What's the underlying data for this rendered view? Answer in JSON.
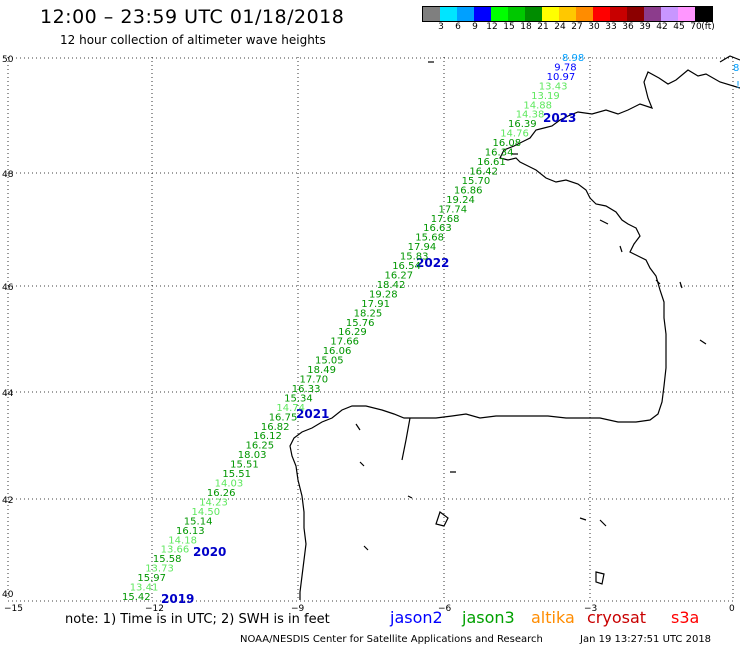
{
  "header": {
    "title": "12:00 – 23:59 UTC 01/18/2018",
    "subtitle": "12 hour collection of altimeter wave heights"
  },
  "legend": {
    "unit": "(ft)",
    "bins": [
      {
        "label": "3",
        "color": "#7f7f7f"
      },
      {
        "label": "6",
        "color": "#00e5ff"
      },
      {
        "label": "9",
        "color": "#00a0ff"
      },
      {
        "label": "12",
        "color": "#0000ff"
      },
      {
        "label": "15",
        "color": "#00ff00"
      },
      {
        "label": "18",
        "color": "#00c800"
      },
      {
        "label": "21",
        "color": "#008c00"
      },
      {
        "label": "24",
        "color": "#ffff00"
      },
      {
        "label": "27",
        "color": "#ffc800"
      },
      {
        "label": "30",
        "color": "#ff8c00"
      },
      {
        "label": "33",
        "color": "#ff0000"
      },
      {
        "label": "36",
        "color": "#c80000"
      },
      {
        "label": "39",
        "color": "#8c0000"
      },
      {
        "label": "42",
        "color": "#8c3c8c"
      },
      {
        "label": "45",
        "color": "#c896ff"
      },
      {
        "label": "70",
        "color": "#ff96ff"
      },
      {
        "label": "",
        "color": "#000000"
      }
    ]
  },
  "axes": {
    "lat_ticks": [
      "50",
      "48",
      "46",
      "44",
      "42",
      "40"
    ],
    "lon_ticks": [
      "−15",
      "−12",
      "−9",
      "−6",
      "−3",
      "0"
    ]
  },
  "track": {
    "time_labels": [
      {
        "label": "2023",
        "color": "#0000c8"
      },
      {
        "label": "2022",
        "color": "#0000c8"
      },
      {
        "label": "2021",
        "color": "#0000c8"
      },
      {
        "label": "2020",
        "color": "#0000c8"
      },
      {
        "label": "2019",
        "color": "#0000c8"
      }
    ],
    "points": [
      {
        "value": "8.98",
        "color": "#00a0ff"
      },
      {
        "value": "9.78",
        "color": "#0000ff"
      },
      {
        "value": "10.97",
        "color": "#0000ff"
      },
      {
        "value": "13.43",
        "color": "#5ee85e"
      },
      {
        "value": "13.19",
        "color": "#5ee85e"
      },
      {
        "value": "14.88",
        "color": "#5ee85e"
      },
      {
        "value": "14.38",
        "color": "#5ee85e"
      },
      {
        "value": "16.39",
        "color": "#009600"
      },
      {
        "value": "14.76",
        "color": "#5ee85e"
      },
      {
        "value": "16.08",
        "color": "#009600"
      },
      {
        "value": "16.34",
        "color": "#009600"
      },
      {
        "value": "16.61",
        "color": "#009600"
      },
      {
        "value": "16.42",
        "color": "#009600"
      },
      {
        "value": "15.70",
        "color": "#009600"
      },
      {
        "value": "16.86",
        "color": "#009600"
      },
      {
        "value": "19.24",
        "color": "#009600"
      },
      {
        "value": "17.74",
        "color": "#009600"
      },
      {
        "value": "17.68",
        "color": "#009600"
      },
      {
        "value": "16.63",
        "color": "#009600"
      },
      {
        "value": "15.68",
        "color": "#009600"
      },
      {
        "value": "17.94",
        "color": "#009600"
      },
      {
        "value": "15.83",
        "color": "#009600"
      },
      {
        "value": "16.54",
        "color": "#009600"
      },
      {
        "value": "16.27",
        "color": "#009600"
      },
      {
        "value": "18.42",
        "color": "#009600"
      },
      {
        "value": "19.28",
        "color": "#009600"
      },
      {
        "value": "17.91",
        "color": "#009600"
      },
      {
        "value": "18.25",
        "color": "#009600"
      },
      {
        "value": "15.76",
        "color": "#009600"
      },
      {
        "value": "16.29",
        "color": "#009600"
      },
      {
        "value": "17.66",
        "color": "#009600"
      },
      {
        "value": "16.06",
        "color": "#009600"
      },
      {
        "value": "15.05",
        "color": "#009600"
      },
      {
        "value": "18.49",
        "color": "#009600"
      },
      {
        "value": "17.70",
        "color": "#009600"
      },
      {
        "value": "16.33",
        "color": "#009600"
      },
      {
        "value": "15.34",
        "color": "#009600"
      },
      {
        "value": "14.74",
        "color": "#5ee85e"
      },
      {
        "value": "16.75",
        "color": "#009600"
      },
      {
        "value": "16.82",
        "color": "#009600"
      },
      {
        "value": "16.12",
        "color": "#009600"
      },
      {
        "value": "16.25",
        "color": "#009600"
      },
      {
        "value": "18.03",
        "color": "#009600"
      },
      {
        "value": "15.51",
        "color": "#009600"
      },
      {
        "value": "15.51",
        "color": "#009600"
      },
      {
        "value": "14.03",
        "color": "#5ee85e"
      },
      {
        "value": "16.26",
        "color": "#009600"
      },
      {
        "value": "14.23",
        "color": "#5ee85e"
      },
      {
        "value": "14.50",
        "color": "#5ee85e"
      },
      {
        "value": "15.14",
        "color": "#009600"
      },
      {
        "value": "16.13",
        "color": "#009600"
      },
      {
        "value": "14.18",
        "color": "#5ee85e"
      },
      {
        "value": "13.66",
        "color": "#5ee85e"
      },
      {
        "value": "15.58",
        "color": "#009600"
      },
      {
        "value": "13.73",
        "color": "#5ee85e"
      },
      {
        "value": "15.97",
        "color": "#009600"
      },
      {
        "value": "13.41",
        "color": "#5ee85e"
      },
      {
        "value": "15.42",
        "color": "#009600"
      }
    ]
  },
  "edge_fragments": [
    {
      "text": "8",
      "color": "#00a0ff"
    },
    {
      "text": "!",
      "color": "#00a0ff"
    }
  ],
  "footer": {
    "note": "note:  1) Time is in UTC;  2) SWH is in feet",
    "satellites": [
      {
        "name": "jason2",
        "color": "#0000ff"
      },
      {
        "name": "jason3",
        "color": "#00a000"
      },
      {
        "name": "altika",
        "color": "#ff8c00"
      },
      {
        "name": "cryosat",
        "color": "#c80000"
      },
      {
        "name": "s3a",
        "color": "#ff0000"
      }
    ],
    "credit": "NOAA/NESDIS Center for Satellite Applications and Research",
    "generated": "Jan 19 13:27:51 UTC 2018"
  }
}
